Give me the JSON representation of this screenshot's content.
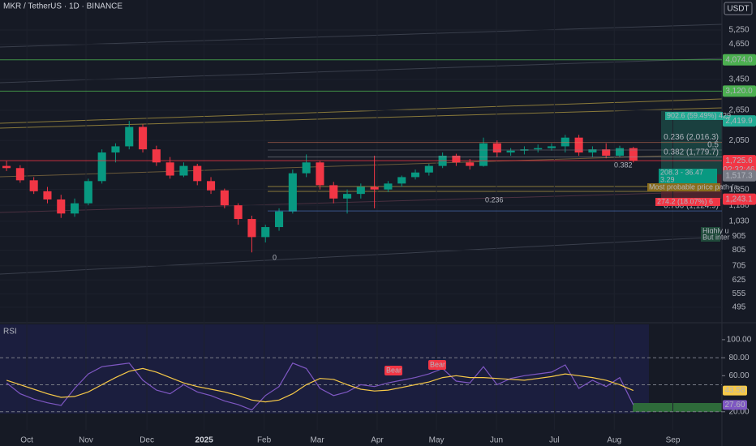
{
  "header": {
    "symbol": "MKR / TetherUS · 1D · BINANCE",
    "currency": "USDT"
  },
  "chart_data": [
    {
      "type": "candlestick",
      "log_scale": true,
      "up_color": "#089981",
      "down_color": "#f23645",
      "categories": [
        null,
        null,
        null,
        null,
        null,
        null,
        null,
        null,
        null,
        null,
        null,
        null,
        null,
        null,
        null,
        null,
        null,
        null,
        null,
        null,
        null,
        null,
        null,
        null,
        null,
        null,
        null,
        null,
        null,
        null,
        null,
        null,
        null,
        null,
        null,
        null,
        null,
        null,
        null,
        null,
        null,
        null,
        null,
        null,
        null,
        null,
        null
      ],
      "ohlc": {
        "open": [
          1650,
          1620,
          1460,
          1330,
          1240,
          1100,
          1200,
          1450,
          1850,
          1950,
          2300,
          1900,
          1700,
          1520,
          1650,
          1450,
          1340,
          1180,
          1050,
          900,
          980,
          1120,
          1550,
          1700,
          1400,
          1250,
          1300,
          1380,
          1350,
          1420,
          1500,
          1560,
          1650,
          1800,
          1700,
          1650,
          2000,
          1850,
          1880,
          1900,
          1920,
          1950,
          2100,
          1850,
          1900,
          1800,
          1920
        ],
        "high": [
          1720,
          1660,
          1500,
          1380,
          1290,
          1250,
          1480,
          1900,
          2000,
          2420,
          2350,
          1960,
          1780,
          1700,
          1680,
          1500,
          1360,
          1200,
          1080,
          1000,
          1150,
          1600,
          1820,
          1720,
          1440,
          1350,
          1420,
          1800,
          1450,
          1520,
          1600,
          1680,
          1850,
          1830,
          1750,
          2100,
          2050,
          1920,
          1950,
          1980,
          2000,
          2150,
          2150,
          1950,
          2000,
          1960,
          1940
        ],
        "low": [
          1580,
          1430,
          1300,
          1200,
          1060,
          1070,
          1180,
          1420,
          1700,
          1900,
          1850,
          1650,
          1480,
          1500,
          1400,
          1300,
          1150,
          1000,
          790,
          860,
          950,
          1100,
          1500,
          1350,
          1200,
          1100,
          1250,
          1150,
          1320,
          1380,
          1470,
          1520,
          1620,
          1650,
          1600,
          1640,
          1780,
          1800,
          1820,
          1850,
          1880,
          1850,
          1800,
          1780,
          1760,
          1780,
          1700
        ],
        "close": [
          1620,
          1460,
          1330,
          1240,
          1100,
          1200,
          1450,
          1850,
          1950,
          2300,
          1900,
          1700,
          1520,
          1650,
          1450,
          1340,
          1180,
          1050,
          900,
          980,
          1120,
          1550,
          1700,
          1400,
          1250,
          1300,
          1380,
          1350,
          1420,
          1500,
          1560,
          1650,
          1800,
          1700,
          1650,
          2000,
          1850,
          1880,
          1900,
          1920,
          1950,
          2100,
          1850,
          1900,
          1800,
          1920,
          1725.6
        ]
      },
      "xlim": [
        -0.48,
        52.5
      ],
      "xticks": [
        {
          "value": 1.49,
          "label": "Oct"
        },
        {
          "value": 5.83,
          "label": "Nov"
        },
        {
          "value": 10.3,
          "label": "Dec"
        },
        {
          "value": 14.5,
          "label": "2025"
        },
        {
          "value": 18.9,
          "label": "Feb"
        },
        {
          "value": 22.8,
          "label": "Mar"
        },
        {
          "value": 27.2,
          "label": "Apr"
        },
        {
          "value": 31.55,
          "label": "May"
        },
        {
          "value": 35.95,
          "label": "Jun"
        },
        {
          "value": 40.2,
          "label": "Jul"
        },
        {
          "value": 44.6,
          "label": "Aug"
        },
        {
          "value": 48.9,
          "label": "Sep"
        }
      ],
      "ylim": [
        443,
        6780
      ],
      "yticks": [
        {
          "value": 5250,
          "label": "5,250"
        },
        {
          "value": 4650,
          "label": "4,650"
        },
        {
          "value": 3450,
          "label": "3,450"
        },
        {
          "value": 2650,
          "label": "2,650"
        },
        {
          "value": 2050,
          "label": "2,050"
        },
        {
          "value": 1350,
          "label": "1,350"
        },
        {
          "value": 1180,
          "label": "1,180"
        },
        {
          "value": 1030,
          "label": "1,030"
        },
        905,
        805,
        705,
        625,
        555,
        495
      ],
      "price_tags": [
        {
          "value": 4074,
          "label": "4,074.0",
          "color": "#4caf50",
          "line": true
        },
        {
          "value": 3120,
          "label": "3,120.0",
          "color": "#4caf50",
          "line": true
        },
        {
          "value": 2419.9,
          "label": "2,419.9",
          "color": "#22ab94",
          "line": false
        },
        {
          "value": 1725.6,
          "label": "1,725.6",
          "countdown": "02:32:46",
          "color": "#f23645",
          "line": true
        },
        {
          "value": 1517.3,
          "label": "1,517.3",
          "color": "#787b86",
          "line": false
        },
        {
          "value": 1243.1,
          "label": "1,243.1",
          "color": "#f23645",
          "line": false
        }
      ],
      "fib_levels": [
        {
          "value": 2016.3,
          "label": "0.236 (2,016.3)",
          "color": "#e57a5a"
        },
        {
          "value": 1779.7,
          "label": "0.382 (1,779.7)",
          "color": "#9598a1"
        },
        {
          "value": 1890,
          "label": "0.5",
          "color": "#787b86"
        },
        {
          "value": 1124.9,
          "label": "0.786 (1,124.9)",
          "color": "#5b8def"
        }
      ],
      "annotations": [
        "902.6 (59.49%) 429",
        "208.3 - 36.47",
        "3.29",
        "274.2 (18.07%) 6",
        "Most probable price path (a",
        "Highly u",
        "But inter",
        "0.382",
        "0.236",
        "0"
      ]
    },
    {
      "type": "line",
      "title": "RSI",
      "series": [
        {
          "color": "#7e57c2",
          "values": [
            52,
            40,
            34,
            30,
            27,
            46,
            62,
            70,
            72,
            74,
            55,
            44,
            40,
            50,
            42,
            38,
            32,
            28,
            22,
            38,
            48,
            74,
            68,
            46,
            38,
            42,
            50,
            48,
            52,
            55,
            58,
            62,
            68,
            54,
            52,
            70,
            50,
            57,
            60,
            62,
            64,
            72,
            46,
            55,
            48,
            58,
            27.6
          ],
          "last_label": "27.60"
        },
        {
          "color": "#f7c948",
          "values": [
            55,
            50,
            45,
            40,
            36,
            37,
            42,
            50,
            58,
            65,
            68,
            64,
            58,
            52,
            48,
            45,
            42,
            38,
            33,
            31,
            33,
            40,
            50,
            57,
            56,
            50,
            45,
            43,
            44,
            47,
            50,
            53,
            58,
            60,
            58,
            58,
            57,
            56,
            55,
            57,
            59,
            62,
            60,
            58,
            55,
            50,
            43.58
          ],
          "last_label": "43.58"
        }
      ],
      "levels": [
        80,
        50,
        20
      ],
      "ylim": [
        0,
        117
      ],
      "yticks": [
        {
          "value": 100,
          "label": "100.00"
        },
        {
          "value": 80,
          "label": "80.00"
        },
        {
          "value": 60,
          "label": "60.00"
        },
        {
          "value": 20,
          "label": "20.00"
        }
      ],
      "annotations": [
        "Bear",
        "Bear"
      ]
    }
  ]
}
